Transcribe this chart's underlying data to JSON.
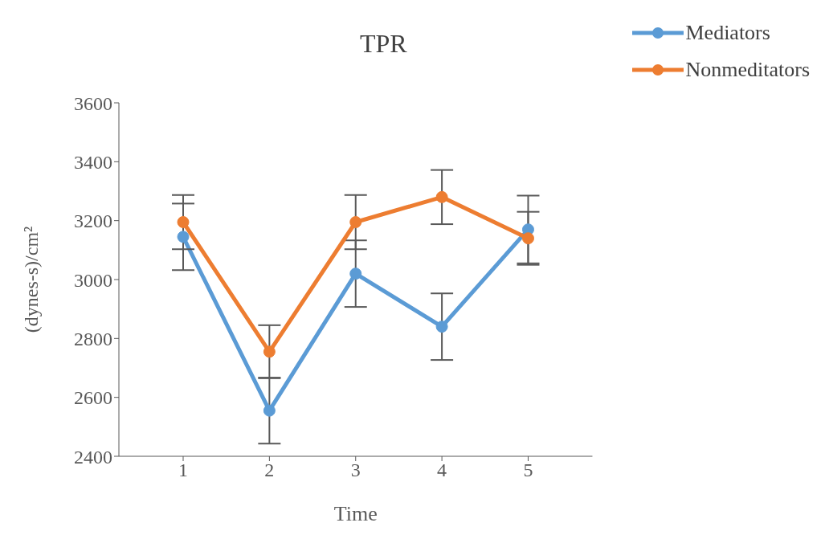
{
  "chart_data": {
    "type": "line",
    "title": "TPR",
    "xlabel": "Time",
    "ylabel": "(dynes-s)/cm²",
    "categories": [
      "1",
      "2",
      "3",
      "4",
      "5"
    ],
    "series": [
      {
        "name": "Mediators",
        "color": "#5b9bd5",
        "values": [
          3145,
          2555,
          3020,
          2840,
          3170
        ],
        "errors": [
          113,
          112,
          113,
          113,
          115
        ]
      },
      {
        "name": "Nonmeditators",
        "color": "#ed7d31",
        "values": [
          3195,
          2755,
          3195,
          3280,
          3140
        ],
        "errors": [
          92,
          90,
          92,
          92,
          90
        ]
      }
    ],
    "ylim": [
      2400,
      3600
    ],
    "yticks": [
      2400,
      2600,
      2800,
      3000,
      3200,
      3400,
      3600
    ],
    "grid": false,
    "legend": "top right",
    "marker": "circle",
    "line_style": "solid"
  }
}
